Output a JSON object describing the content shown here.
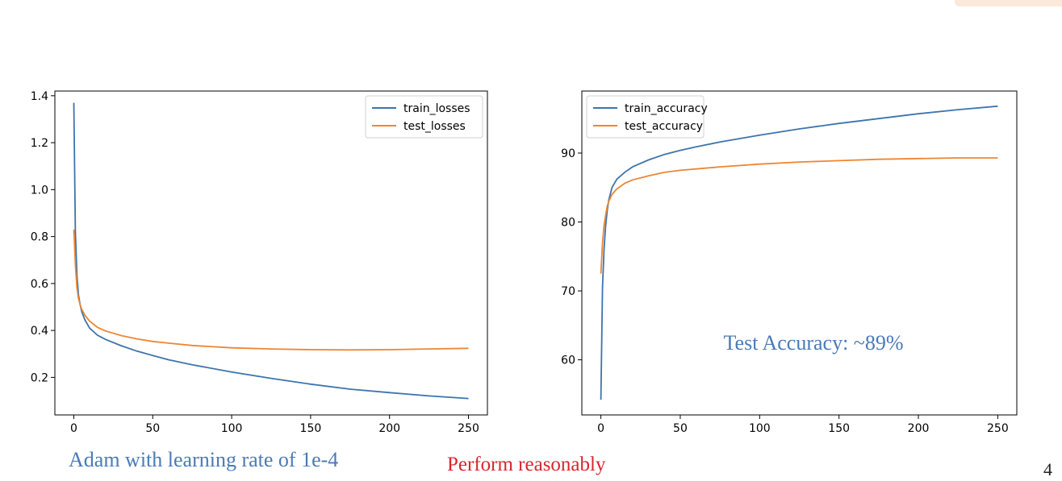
{
  "slide": {
    "caption_left": "Adam with learning rate of 1e-4",
    "caption_mid": "Perform reasonably",
    "page_number": "4"
  },
  "chart_data": [
    {
      "type": "line",
      "title": "",
      "xlabel": "",
      "ylabel": "",
      "xlim": [
        -12,
        262
      ],
      "ylim": [
        0.04,
        1.42
      ],
      "xticks": [
        0,
        50,
        100,
        150,
        200,
        250
      ],
      "yticks": [
        0.2,
        0.4,
        0.6,
        0.8,
        1.0,
        1.2,
        1.4
      ],
      "ytick_labels": [
        "0.2",
        "0.4",
        "0.6",
        "0.8",
        "1.0",
        "1.2",
        "1.4"
      ],
      "legend_position": "upper-right",
      "series": [
        {
          "name": "train_losses",
          "color": "#3d74ad",
          "points": [
            [
              0,
              1.37
            ],
            [
              1,
              0.82
            ],
            [
              2,
              0.63
            ],
            [
              3,
              0.55
            ],
            [
              4,
              0.51
            ],
            [
              5,
              0.48
            ],
            [
              7,
              0.445
            ],
            [
              10,
              0.41
            ],
            [
              15,
              0.38
            ],
            [
              20,
              0.362
            ],
            [
              30,
              0.335
            ],
            [
              40,
              0.312
            ],
            [
              50,
              0.293
            ],
            [
              60,
              0.275
            ],
            [
              75,
              0.254
            ],
            [
              100,
              0.223
            ],
            [
              125,
              0.196
            ],
            [
              150,
              0.171
            ],
            [
              175,
              0.15
            ],
            [
              200,
              0.135
            ],
            [
              225,
              0.121
            ],
            [
              250,
              0.11
            ]
          ]
        },
        {
          "name": "test_losses",
          "color": "#ee8633",
          "points": [
            [
              0,
              0.83
            ],
            [
              1,
              0.68
            ],
            [
              2,
              0.58
            ],
            [
              3,
              0.535
            ],
            [
              4,
              0.51
            ],
            [
              5,
              0.49
            ],
            [
              7,
              0.465
            ],
            [
              10,
              0.44
            ],
            [
              15,
              0.413
            ],
            [
              20,
              0.398
            ],
            [
              30,
              0.378
            ],
            [
              40,
              0.364
            ],
            [
              50,
              0.353
            ],
            [
              60,
              0.346
            ],
            [
              75,
              0.336
            ],
            [
              100,
              0.326
            ],
            [
              125,
              0.321
            ],
            [
              150,
              0.318
            ],
            [
              175,
              0.317
            ],
            [
              200,
              0.318
            ],
            [
              225,
              0.321
            ],
            [
              250,
              0.324
            ]
          ]
        }
      ]
    },
    {
      "type": "line",
      "title": "",
      "xlabel": "",
      "ylabel": "",
      "xlim": [
        -12,
        262
      ],
      "ylim": [
        52.0,
        99.0
      ],
      "xticks": [
        0,
        50,
        100,
        150,
        200,
        250
      ],
      "yticks": [
        60,
        70,
        80,
        90
      ],
      "ytick_labels": [
        "60",
        "70",
        "80",
        "90"
      ],
      "legend_position": "upper-left",
      "annotation": "Test Accuracy: ~89%",
      "series": [
        {
          "name": "train_accuracy",
          "color": "#3d74ad",
          "points": [
            [
              0,
              54.2
            ],
            [
              1,
              70.5
            ],
            [
              2,
              76.0
            ],
            [
              3,
              79.5
            ],
            [
              4,
              81.7
            ],
            [
              5,
              83.2
            ],
            [
              7,
              85.0
            ],
            [
              10,
              86.2
            ],
            [
              15,
              87.2
            ],
            [
              20,
              88.0
            ],
            [
              30,
              89.0
            ],
            [
              40,
              89.8
            ],
            [
              50,
              90.4
            ],
            [
              60,
              90.9
            ],
            [
              75,
              91.6
            ],
            [
              100,
              92.6
            ],
            [
              125,
              93.5
            ],
            [
              150,
              94.3
            ],
            [
              175,
              95.0
            ],
            [
              200,
              95.7
            ],
            [
              225,
              96.3
            ],
            [
              250,
              96.8
            ]
          ]
        },
        {
          "name": "test_accuracy",
          "color": "#ee8633",
          "points": [
            [
              0,
              72.5
            ],
            [
              1,
              77.0
            ],
            [
              2,
              79.5
            ],
            [
              3,
              81.0
            ],
            [
              4,
              82.3
            ],
            [
              5,
              83.0
            ],
            [
              7,
              84.0
            ],
            [
              10,
              84.8
            ],
            [
              15,
              85.6
            ],
            [
              20,
              86.1
            ],
            [
              30,
              86.7
            ],
            [
              40,
              87.2
            ],
            [
              50,
              87.5
            ],
            [
              60,
              87.7
            ],
            [
              75,
              88.0
            ],
            [
              100,
              88.4
            ],
            [
              125,
              88.7
            ],
            [
              150,
              88.9
            ],
            [
              175,
              89.1
            ],
            [
              200,
              89.2
            ],
            [
              225,
              89.3
            ],
            [
              250,
              89.3
            ]
          ]
        }
      ]
    }
  ]
}
